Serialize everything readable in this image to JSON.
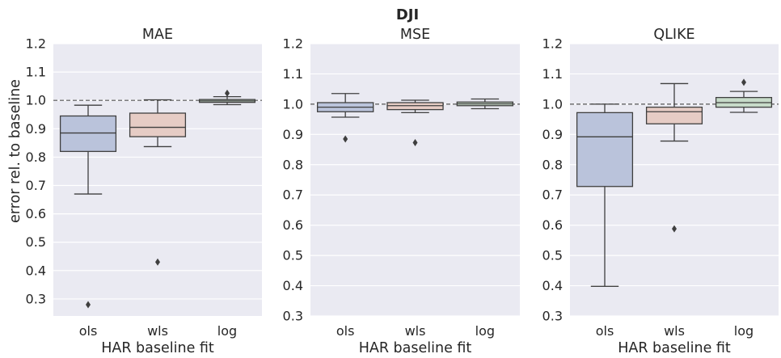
{
  "suptitle": "DJI",
  "shared_ylabel": "error rel. to baseline",
  "colors": {
    "panel_bg": "#EAEAF2",
    "grid": "#FFFFFF",
    "line": "#3F3F3F",
    "box_ols": "#BAC3DB",
    "box_wls": "#E6CCC5",
    "box_log": "#C7DBC9"
  },
  "chart_data": [
    {
      "type": "box",
      "title": "MAE",
      "xlabel": "HAR baseline fit",
      "ylabel": "error rel. to baseline",
      "ylim": [
        0.24,
        1.2
      ],
      "yticks": [
        "0.3",
        "0.4",
        "0.5",
        "0.6",
        "0.7",
        "0.8",
        "0.9",
        "1.0",
        "1.1",
        "1.2"
      ],
      "categories": [
        "ols",
        "wls",
        "log"
      ],
      "baseline": 1.0,
      "grid": true,
      "boxes": [
        {
          "category": "ols",
          "whisker_low": 0.67,
          "q1": 0.82,
          "median": 0.885,
          "q3": 0.945,
          "whisker_high": 0.983,
          "outliers": [
            0.28
          ]
        },
        {
          "category": "wls",
          "whisker_low": 0.837,
          "q1": 0.872,
          "median": 0.905,
          "q3": 0.955,
          "whisker_high": 1.002,
          "outliers": [
            0.43
          ]
        },
        {
          "category": "log",
          "whisker_low": 0.985,
          "q1": 0.993,
          "median": 0.998,
          "q3": 1.003,
          "whisker_high": 1.013,
          "outliers": [
            1.025
          ]
        }
      ]
    },
    {
      "type": "box",
      "title": "MSE",
      "xlabel": "HAR baseline fit",
      "ylabel": "",
      "ylim": [
        0.3,
        1.2
      ],
      "yticks": [
        "0.3",
        "0.4",
        "0.5",
        "0.6",
        "0.7",
        "0.8",
        "0.9",
        "1.0",
        "1.1",
        "1.2"
      ],
      "categories": [
        "ols",
        "wls",
        "log"
      ],
      "baseline": 1.0,
      "grid": true,
      "boxes": [
        {
          "category": "ols",
          "whisker_low": 0.957,
          "q1": 0.975,
          "median": 0.99,
          "q3": 1.005,
          "whisker_high": 1.035,
          "outliers": [
            0.885
          ]
        },
        {
          "category": "wls",
          "whisker_low": 0.972,
          "q1": 0.982,
          "median": 0.995,
          "q3": 1.005,
          "whisker_high": 1.013,
          "outliers": [
            0.873
          ]
        },
        {
          "category": "log",
          "whisker_low": 0.985,
          "q1": 0.995,
          "median": 1.001,
          "q3": 1.007,
          "whisker_high": 1.017,
          "outliers": []
        }
      ]
    },
    {
      "type": "box",
      "title": "QLIKE",
      "xlabel": "HAR baseline fit",
      "ylabel": "",
      "ylim": [
        0.3,
        1.2
      ],
      "yticks": [
        "0.3",
        "0.4",
        "0.5",
        "0.6",
        "0.7",
        "0.8",
        "0.9",
        "1.0",
        "1.1",
        "1.2"
      ],
      "categories": [
        "ols",
        "wls",
        "log"
      ],
      "baseline": 1.0,
      "grid": true,
      "boxes": [
        {
          "category": "ols",
          "whisker_low": 0.398,
          "q1": 0.728,
          "median": 0.892,
          "q3": 0.972,
          "whisker_high": 1.0,
          "outliers": []
        },
        {
          "category": "wls",
          "whisker_low": 0.878,
          "q1": 0.935,
          "median": 0.975,
          "q3": 0.99,
          "whisker_high": 1.068,
          "outliers": [
            0.588
          ]
        },
        {
          "category": "log",
          "whisker_low": 0.973,
          "q1": 0.99,
          "median": 1.005,
          "q3": 1.022,
          "whisker_high": 1.042,
          "outliers": [
            1.072
          ]
        }
      ]
    }
  ]
}
